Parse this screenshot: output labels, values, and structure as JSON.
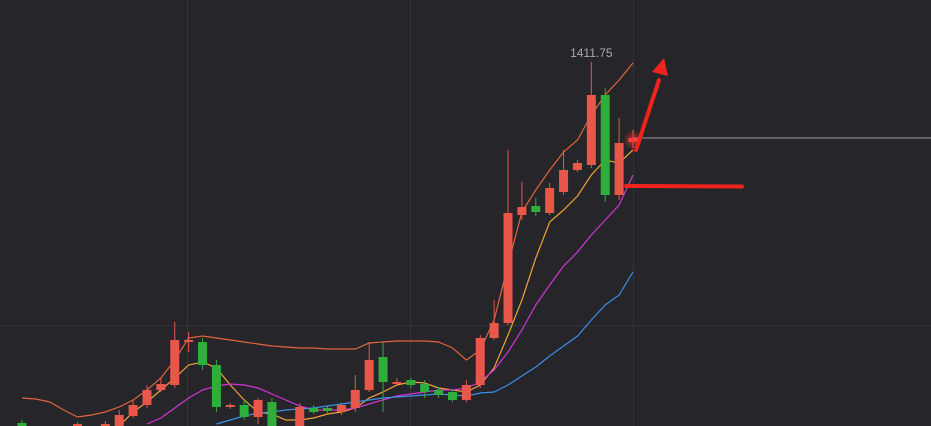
{
  "chart_data": {
    "type": "candlestick",
    "ylim": [
      1266.1,
      1436.5
    ],
    "up_color": "#e8574a",
    "down_color": "#2fae3b",
    "open": [
      1267.3,
      null,
      null,
      null,
      1266.1,
      null,
      1266.1,
      1266.1,
      1270.1,
      1274.5,
      1280.5,
      1282.5,
      1299.7,
      1299.7,
      1290.5,
      1273.7,
      1274.5,
      1269.7,
      1275.7,
      null,
      1266.1,
      1273.3,
      1273.3,
      1271.7,
      1273.3,
      1280.5,
      1293.7,
      1282.9,
      1284.5,
      1282.9,
      1280.5,
      1279.7,
      1276.5,
      1282.5,
      1301.3,
      1307.3,
      1350.5,
      1354.1,
      1351.3,
      1359.7,
      1368.5,
      1370.5,
      1398.5,
      1358.5,
      1379.7
    ],
    "high": [
      1268.5,
      null,
      null,
      null,
      1267.7,
      null,
      1268.1,
      1272.5,
      1276.5,
      1282.5,
      1285.3,
      1307.7,
      1303.7,
      1301.3,
      1292.5,
      1275.3,
      1276.5,
      1277.3,
      1277.3,
      null,
      1275.3,
      1274.5,
      1274.1,
      1275.3,
      1286.5,
      1299.7,
      1299.7,
      1285.3,
      1285.3,
      1284.5,
      1281.7,
      1280.5,
      1284.5,
      1302.5,
      1316.5,
      1376.5,
      1363.7,
      1357.3,
      1363.3,
      1376.5,
      1372.5,
      1411.75,
      1401.3,
      1389.3,
      1384.5
    ],
    "low": [
      1266.1,
      null,
      null,
      null,
      1266.1,
      null,
      1266.1,
      1266.1,
      1269.3,
      1273.3,
      1279.7,
      1281.3,
      1295.7,
      1288.5,
      1271.7,
      1272.9,
      1268.5,
      1266.9,
      1266.1,
      null,
      1266.1,
      1270.9,
      1271.3,
      1270.5,
      1271.7,
      1279.7,
      1271.7,
      1282.1,
      1281.3,
      1277.3,
      1277.3,
      1275.7,
      1275.7,
      1281.3,
      1300.5,
      1306.5,
      1348.5,
      1350.1,
      1350.5,
      1358.5,
      1367.7,
      1369.3,
      1355.7,
      1356.5,
      1377.3
    ],
    "close": [
      1266.1,
      null,
      null,
      null,
      1266.9,
      null,
      1266.9,
      1270.5,
      1274.5,
      1280.5,
      1282.9,
      1300.5,
      1300.5,
      1290.5,
      1273.7,
      1274.5,
      1269.7,
      1276.5,
      1266.1,
      null,
      1273.7,
      1271.7,
      1272.1,
      1274.5,
      1280.5,
      1292.5,
      1283.7,
      1283.7,
      1282.5,
      1279.7,
      1278.5,
      1276.5,
      1282.5,
      1301.3,
      1307.3,
      1351.3,
      1353.7,
      1351.7,
      1361.3,
      1368.5,
      1371.3,
      1398.5,
      1358.5,
      1379.3,
      1381.3
    ],
    "lines": [
      {
        "color": "#e0643c",
        "values": [
          1277.3,
          1276.9,
          1275.7,
          1272.5,
          1269.7,
          1270.5,
          1271.7,
          1273.7,
          1276.5,
          1280.5,
          1285.3,
          1292.5,
          1301.3,
          1302.1,
          1301.3,
          1300.5,
          1299.7,
          1298.9,
          1298.1,
          1297.7,
          1297.3,
          1297.3,
          1296.9,
          1296.9,
          1296.9,
          1299.3,
          1299.7,
          1300.1,
          1300.1,
          1300.1,
          1299.7,
          1297.3,
          1292.5,
          1296.5,
          1308.5,
          1330.5,
          1351.7,
          1360.5,
          1368.5,
          1375.7,
          1380.5,
          1390.5,
          1398.5,
          1404.5,
          1411.3
        ]
      },
      {
        "color": "#f0a232",
        "values": [
          null,
          null,
          null,
          null,
          null,
          null,
          null,
          1266.1,
          1271.7,
          1275.7,
          1280.5,
          1285.3,
          1290.5,
          1291.7,
          1289.3,
          1282.5,
          1276.5,
          1271.7,
          1270.9,
          1268.5,
          1268.5,
          1269.3,
          1270.9,
          1271.7,
          1273.3,
          1277.3,
          1279.7,
          1282.5,
          1283.7,
          1283.3,
          1281.3,
          1280.5,
          1279.7,
          1282.5,
          1289.3,
          1302.5,
          1316.5,
          1333.3,
          1347.7,
          1352.5,
          1358.1,
          1366.5,
          1372.5,
          1371.3,
          1376.5
        ]
      },
      {
        "color": "#d434d4",
        "values": [
          null,
          null,
          null,
          null,
          null,
          null,
          null,
          null,
          null,
          1266.9,
          1269.3,
          1273.3,
          1277.3,
          1280.5,
          1282.1,
          1282.9,
          1282.5,
          1281.3,
          1278.9,
          1276.5,
          1274.1,
          1272.5,
          1272.5,
          1272.5,
          1273.3,
          1274.9,
          1276.5,
          1278.1,
          1278.9,
          1279.7,
          1280.5,
          1280.5,
          1281.3,
          1283.7,
          1288.5,
          1295.7,
          1304.5,
          1314.5,
          1322.5,
          1330.1,
          1335.7,
          1342.5,
          1348.5,
          1354.5,
          1366.5
        ]
      },
      {
        "color": "#3a8fe8",
        "values": [
          null,
          null,
          null,
          null,
          null,
          null,
          null,
          null,
          null,
          null,
          null,
          null,
          null,
          null,
          1266.9,
          1268.5,
          1270.1,
          1271.3,
          1271.7,
          1272.5,
          1272.9,
          1273.3,
          1274.1,
          1274.9,
          1275.7,
          1276.5,
          1277.3,
          1277.7,
          1278.1,
          1278.5,
          1278.9,
          1278.5,
          1278.1,
          1279.3,
          1279.7,
          1282.5,
          1286.1,
          1289.7,
          1294.1,
          1298.1,
          1302.1,
          1308.5,
          1314.5,
          1318.5,
          1327.7
        ]
      }
    ]
  }
}
